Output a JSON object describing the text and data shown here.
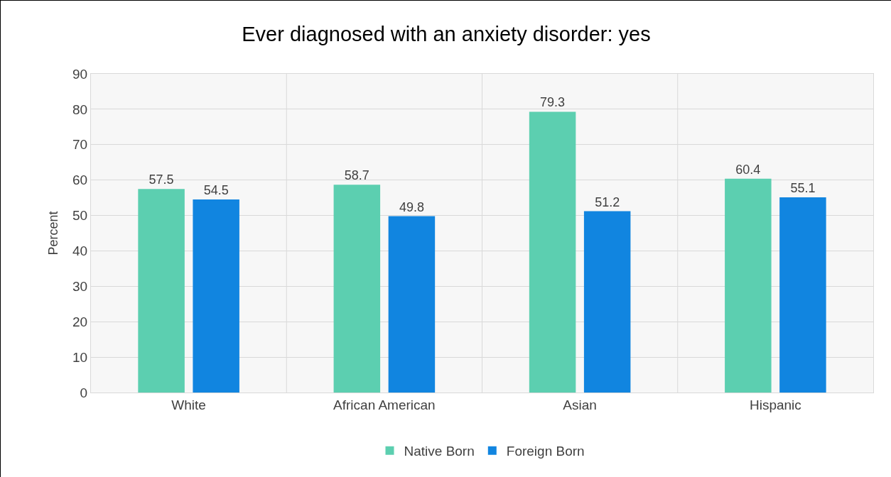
{
  "chart_data": {
    "type": "bar",
    "title": "Ever diagnosed with an anxiety disorder: yes",
    "ylabel": "Percent",
    "categories": [
      "White",
      "African American",
      "Asian",
      "Hispanic"
    ],
    "series": [
      {
        "name": "Native Born",
        "color": "#5ccfb0",
        "values": [
          57.5,
          58.7,
          79.3,
          60.4
        ]
      },
      {
        "name": "Foreign Born",
        "color": "#1185e0",
        "values": [
          54.5,
          49.8,
          51.2,
          55.1
        ]
      }
    ],
    "ylim": [
      0,
      90
    ],
    "yticks": [
      0,
      10,
      20,
      30,
      40,
      50,
      60,
      70,
      80,
      90
    ],
    "grid": true,
    "legend": "bottom",
    "data_labels": true
  }
}
